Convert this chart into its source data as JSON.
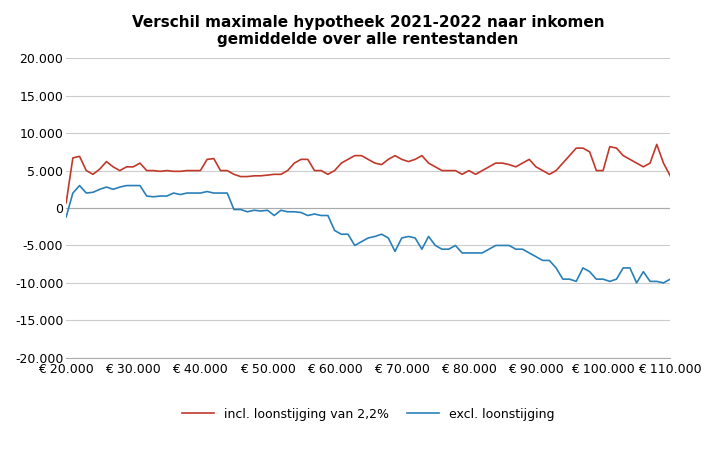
{
  "title": "Verschil maximale hypotheek 2021-2022 naar inkomen\ngemiddelde over alle rentestanden",
  "xlim": [
    20000,
    110000
  ],
  "ylim": [
    -20000,
    20000
  ],
  "yticks": [
    -20000,
    -15000,
    -10000,
    -5000,
    0,
    5000,
    10000,
    15000,
    20000
  ],
  "xticks": [
    20000,
    30000,
    40000,
    50000,
    60000,
    70000,
    80000,
    90000,
    100000,
    110000
  ],
  "legend_labels": [
    "incl. loonstijging van 2,2%",
    "excl. loonstijging"
  ],
  "line_colors": [
    "#c0392b",
    "#2980b9"
  ],
  "x_vals": [
    20000,
    21000,
    22000,
    23000,
    24000,
    25000,
    26000,
    27000,
    28000,
    29000,
    30000,
    31000,
    32000,
    33000,
    34000,
    35000,
    36000,
    37000,
    38000,
    39000,
    40000,
    41000,
    42000,
    43000,
    44000,
    45000,
    46000,
    47000,
    48000,
    49000,
    50000,
    51000,
    52000,
    53000,
    54000,
    55000,
    56000,
    57000,
    58000,
    59000,
    60000,
    61000,
    62000,
    63000,
    64000,
    65000,
    66000,
    67000,
    68000,
    69000,
    70000,
    71000,
    72000,
    73000,
    74000,
    75000,
    76000,
    77000,
    78000,
    79000,
    80000,
    81000,
    82000,
    83000,
    84000,
    85000,
    86000,
    87000,
    88000,
    89000,
    90000,
    91000,
    92000,
    93000,
    94000,
    95000,
    96000,
    97000,
    98000,
    99000,
    100000,
    101000,
    102000,
    103000,
    104000,
    105000,
    106000,
    107000,
    108000,
    109000,
    110000
  ],
  "red_y": [
    700,
    6700,
    6900,
    5000,
    4500,
    5200,
    6200,
    5500,
    5000,
    5500,
    5500,
    6000,
    5000,
    5000,
    4900,
    5000,
    4900,
    4900,
    5000,
    5000,
    5000,
    6500,
    6600,
    5000,
    5000,
    4500,
    4200,
    4200,
    4300,
    4300,
    4400,
    4500,
    4500,
    5000,
    6000,
    6500,
    6500,
    5000,
    5000,
    4500,
    5000,
    6000,
    6500,
    7000,
    7000,
    6500,
    6000,
    5800,
    6500,
    7000,
    6500,
    6200,
    6500,
    7000,
    6000,
    5500,
    5000,
    5000,
    5000,
    4500,
    5000,
    4500,
    5000,
    5500,
    6000,
    6000,
    5800,
    5500,
    6000,
    6500,
    5500,
    5000,
    4500,
    5000,
    6000,
    7000,
    8000,
    8000,
    7500,
    5000,
    5000,
    8200,
    8000,
    7000,
    6500,
    6000,
    5500,
    6000,
    8500,
    6000,
    4300
  ],
  "blue_y": [
    -1200,
    2000,
    3000,
    2000,
    2100,
    2500,
    2800,
    2500,
    2800,
    3000,
    3000,
    3000,
    1600,
    1500,
    1600,
    1600,
    2000,
    1800,
    2000,
    2000,
    2000,
    2200,
    2000,
    2000,
    2000,
    -200,
    -200,
    -500,
    -300,
    -400,
    -300,
    -1000,
    -300,
    -500,
    -500,
    -600,
    -1000,
    -800,
    -1000,
    -1000,
    -3000,
    -3500,
    -3500,
    -5000,
    -4500,
    -4000,
    -3800,
    -3500,
    -4000,
    -5800,
    -4000,
    -3800,
    -4000,
    -5500,
    -3800,
    -5000,
    -5500,
    -5500,
    -5000,
    -6000,
    -6000,
    -6000,
    -6000,
    -5500,
    -5000,
    -5000,
    -5000,
    -5500,
    -5500,
    -6000,
    -6500,
    -7000,
    -7000,
    -8000,
    -9500,
    -9500,
    -9800,
    -8000,
    -8500,
    -9500,
    -9500,
    -9800,
    -9500,
    -8000,
    -8000,
    -10000,
    -8500,
    -9800,
    -9800,
    -10000,
    -9500
  ],
  "background_color": "#ffffff",
  "grid_color": "#cccccc",
  "title_fontsize": 11,
  "tick_fontsize": 9,
  "legend_fontsize": 9,
  "linewidth": 1.2
}
